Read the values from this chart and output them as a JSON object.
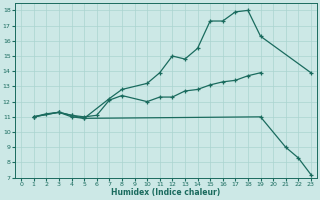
{
  "xlabel": "Humidex (Indice chaleur)",
  "bg_color": "#cce8e6",
  "grid_color": "#aad4d0",
  "line_color": "#1a6b5e",
  "xlim": [
    -0.5,
    23.5
  ],
  "ylim": [
    7,
    18.5
  ],
  "xticks": [
    0,
    1,
    2,
    3,
    4,
    5,
    6,
    7,
    8,
    9,
    10,
    11,
    12,
    13,
    14,
    15,
    16,
    17,
    18,
    19,
    20,
    21,
    22,
    23
  ],
  "yticks": [
    7,
    8,
    9,
    10,
    11,
    12,
    13,
    14,
    15,
    16,
    17,
    18
  ],
  "line1_x": [
    1,
    2,
    3,
    4,
    5,
    7,
    8,
    10,
    11,
    12,
    13,
    14,
    15,
    16,
    17,
    18,
    19,
    23
  ],
  "line1_y": [
    11.0,
    11.2,
    11.3,
    11.0,
    10.9,
    12.2,
    12.8,
    13.2,
    13.9,
    15.0,
    14.8,
    15.5,
    17.3,
    17.3,
    17.9,
    18.0,
    16.3,
    13.9
  ],
  "line2_x": [
    1,
    3,
    4,
    5,
    6,
    7,
    8,
    10,
    11,
    12,
    13,
    14,
    15,
    16,
    17,
    18,
    19
  ],
  "line2_y": [
    11.0,
    11.3,
    11.1,
    11.0,
    11.1,
    12.1,
    12.4,
    12.0,
    12.3,
    12.3,
    12.7,
    12.8,
    13.1,
    13.3,
    13.4,
    13.7,
    13.9
  ],
  "line3_x": [
    1,
    3,
    4,
    5,
    19,
    21,
    22,
    23
  ],
  "line3_y": [
    11.0,
    11.3,
    11.1,
    10.9,
    11.0,
    9.0,
    8.3,
    7.2
  ]
}
